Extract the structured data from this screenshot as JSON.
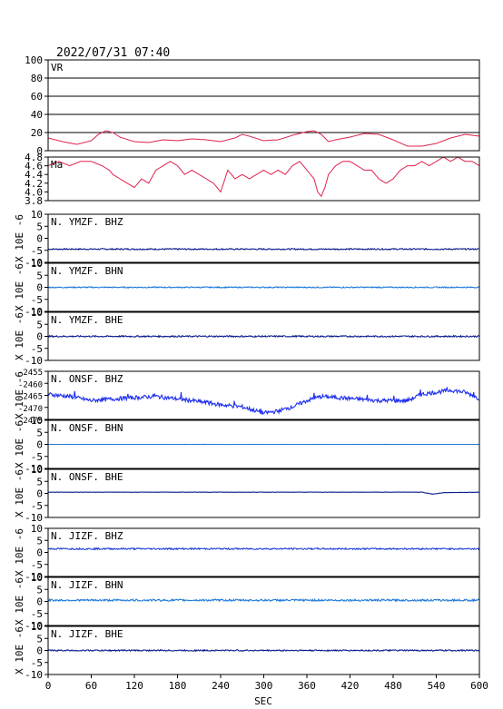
{
  "header": {
    "timestamp": "2022/07/31 07:40"
  },
  "xaxis": {
    "label": "SEC",
    "range": [
      0,
      600
    ],
    "ticks": [
      "0",
      "60",
      "120",
      "180",
      "240",
      "300",
      "360",
      "420",
      "480",
      "540",
      "600"
    ]
  },
  "colors": {
    "frame": "#000000",
    "vr_ma": "#e0204a",
    "dark_blue": "#0a1a8c",
    "mid_blue": "#2040d8",
    "light_blue": "#1e7ad8",
    "bright_blue": "#1e2ef0"
  },
  "chart_data": [
    {
      "type": "line",
      "label": "VR",
      "ylim": [
        0,
        100
      ],
      "grid": true,
      "yticks": [
        "100",
        "80",
        "60",
        "40",
        "20",
        "0"
      ],
      "x": [
        0,
        20,
        40,
        60,
        70,
        80,
        90,
        100,
        120,
        140,
        160,
        180,
        200,
        220,
        240,
        260,
        270,
        280,
        300,
        320,
        340,
        360,
        370,
        380,
        390,
        400,
        420,
        440,
        460,
        480,
        500,
        520,
        540,
        560,
        580,
        590,
        600
      ],
      "y": [
        14,
        10,
        7,
        11,
        18,
        22,
        20,
        15,
        10,
        9,
        12,
        11,
        13,
        12,
        10,
        14,
        18,
        16,
        11,
        12,
        17,
        21,
        22,
        18,
        10,
        12,
        15,
        19,
        18,
        12,
        5,
        5,
        8,
        14,
        18,
        17,
        16
      ]
    },
    {
      "type": "line",
      "label": "Ma",
      "ylim": [
        3.8,
        4.8
      ],
      "grid": false,
      "yticks": [
        "4.8",
        "4.6",
        "4.4",
        "4.2",
        "4.0",
        "3.8"
      ],
      "x": [
        0,
        15,
        30,
        45,
        60,
        75,
        85,
        90,
        100,
        110,
        120,
        130,
        140,
        150,
        160,
        170,
        180,
        190,
        200,
        210,
        220,
        230,
        240,
        250,
        260,
        270,
        280,
        290,
        300,
        310,
        320,
        330,
        340,
        350,
        360,
        370,
        375,
        380,
        385,
        390,
        400,
        410,
        420,
        430,
        440,
        450,
        460,
        470,
        480,
        490,
        500,
        510,
        520,
        530,
        540,
        550,
        560,
        570,
        580,
        590,
        600
      ],
      "y": [
        4.6,
        4.7,
        4.6,
        4.7,
        4.7,
        4.6,
        4.5,
        4.4,
        4.3,
        4.2,
        4.1,
        4.3,
        4.2,
        4.5,
        4.6,
        4.7,
        4.6,
        4.4,
        4.5,
        4.4,
        4.3,
        4.2,
        4.0,
        4.5,
        4.3,
        4.4,
        4.3,
        4.4,
        4.5,
        4.4,
        4.5,
        4.4,
        4.6,
        4.7,
        4.5,
        4.3,
        4.0,
        3.9,
        4.1,
        4.4,
        4.6,
        4.7,
        4.7,
        4.6,
        4.5,
        4.5,
        4.3,
        4.2,
        4.3,
        4.5,
        4.6,
        4.6,
        4.7,
        4.6,
        4.7,
        4.8,
        4.7,
        4.8,
        4.7,
        4.7,
        4.6
      ]
    },
    {
      "type": "line",
      "label": "N. YMZF. BHZ",
      "ylim": [
        -10,
        10
      ],
      "grid": false,
      "yticks": [
        "10",
        "5",
        "0",
        "-5",
        "-10"
      ],
      "ylabel": "X 10E -6",
      "x": [
        0,
        600
      ],
      "y": [
        -4.5,
        -4.5
      ]
    },
    {
      "type": "line",
      "label": "N. YMZF. BHN",
      "ylim": [
        -10,
        10
      ],
      "grid": false,
      "yticks": [
        "10",
        "5",
        "0",
        "-5",
        "-10"
      ],
      "ylabel": "X 10E -6",
      "x": [
        0,
        600
      ],
      "y": [
        0,
        0
      ]
    },
    {
      "type": "line",
      "label": "N. YMZF. BHE",
      "ylim": [
        -10,
        10
      ],
      "grid": false,
      "yticks": [
        "10",
        "5",
        "0",
        "-5",
        "-10"
      ],
      "ylabel": "X 10E -6",
      "x": [
        0,
        600
      ],
      "y": [
        0,
        0
      ]
    },
    {
      "type": "line",
      "label": "N. ONSF. BHZ",
      "ylim": [
        -2475,
        -2452
      ],
      "grid": false,
      "yticks": [
        "-2455",
        "-2460",
        "-2465",
        "-2470",
        "-2475"
      ],
      "ylabel": "X 10E -6",
      "x": [
        0,
        30,
        60,
        100,
        150,
        200,
        240,
        270,
        290,
        300,
        320,
        340,
        360,
        380,
        420,
        460,
        500,
        520,
        540,
        560,
        580,
        600
      ],
      "y": [
        -2463,
        -2464,
        -2466,
        -2465,
        -2464,
        -2466,
        -2468,
        -2469,
        -2471,
        -2472,
        -2471,
        -2469,
        -2466,
        -2464,
        -2465,
        -2466,
        -2466,
        -2463,
        -2462,
        -2461,
        -2462,
        -2465
      ]
    },
    {
      "type": "line",
      "label": "N. ONSF. BHN",
      "ylim": [
        -10,
        10
      ],
      "grid": false,
      "yticks": [
        "10",
        "5",
        "0",
        "-5",
        "-10"
      ],
      "ylabel": "X 10E -6",
      "x": [
        0,
        600
      ],
      "y": [
        0,
        0
      ]
    },
    {
      "type": "line",
      "label": "N. ONSF. BHE",
      "ylim": [
        -10,
        10
      ],
      "grid": false,
      "yticks": [
        "10",
        "5",
        "0",
        "-5",
        "-10"
      ],
      "ylabel": "X 10E -6",
      "x": [
        0,
        520,
        535,
        550,
        600
      ],
      "y": [
        0.5,
        0.5,
        -0.3,
        0.3,
        0.5
      ]
    },
    {
      "type": "line",
      "label": "N. JIZF. BHZ",
      "ylim": [
        -10,
        10
      ],
      "grid": false,
      "yticks": [
        "10",
        "5",
        "0",
        "-5",
        "-10"
      ],
      "ylabel": "X 10E -6",
      "x": [
        0,
        600
      ],
      "y": [
        1.5,
        1.5
      ]
    },
    {
      "type": "line",
      "label": "N. JIZF. BHN",
      "ylim": [
        -10,
        10
      ],
      "grid": false,
      "yticks": [
        "10",
        "5",
        "0",
        "-5",
        "-10"
      ],
      "ylabel": "X 10E -6",
      "x": [
        0,
        600
      ],
      "y": [
        0.5,
        0.5
      ]
    },
    {
      "type": "line",
      "label": "N. JIZF. BHE",
      "ylim": [
        -10,
        10
      ],
      "grid": false,
      "yticks": [
        "10",
        "5",
        "0",
        "-5",
        "-10"
      ],
      "ylabel": "X 10E -6",
      "x": [
        0,
        600
      ],
      "y": [
        0,
        0
      ]
    }
  ]
}
